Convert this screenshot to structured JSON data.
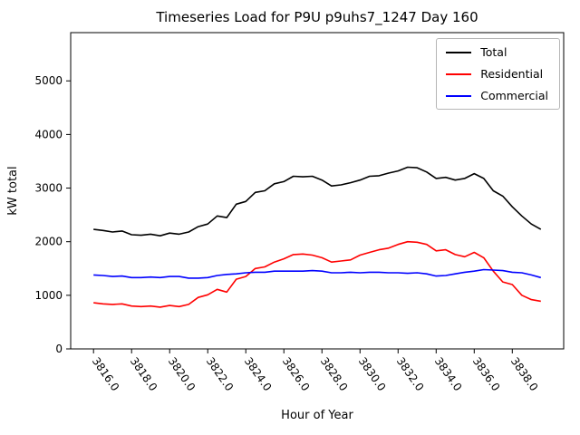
{
  "figure": {
    "title": "Timeseries Load for P9U p9uhs7_1247  Day 160",
    "xlabel": "Hour of Year",
    "ylabel": "kW total"
  },
  "legend": {
    "entries": [
      {
        "label": "Total",
        "color": "#000000"
      },
      {
        "label": "Residential",
        "color": "#ff0000"
      },
      {
        "label": "Commercial",
        "color": "#0000ff"
      }
    ]
  },
  "chart_data": {
    "type": "line",
    "title": "Timeseries Load for P9U p9uhs7_1247  Day 160",
    "xlabel": "Hour of Year",
    "ylabel": "kW total",
    "xlim": [
      3814.8,
      3840.7
    ],
    "ylim": [
      0,
      5900
    ],
    "xticks": [
      3816,
      3818,
      3820,
      3822,
      3824,
      3826,
      3828,
      3830,
      3832,
      3834,
      3836,
      3838
    ],
    "xtick_labels": [
      "3816.0",
      "3818.0",
      "3820.0",
      "3822.0",
      "3824.0",
      "3826.0",
      "3828.0",
      "3830.0",
      "3832.0",
      "3834.0",
      "3836.0",
      "3838.0"
    ],
    "yticks": [
      0,
      1000,
      2000,
      3000,
      4000,
      5000
    ],
    "ytick_labels": [
      "0",
      "1000",
      "2000",
      "3000",
      "4000",
      "5000"
    ],
    "grid": false,
    "legend_position": "upper right",
    "x": [
      3816.0,
      3816.5,
      3817.0,
      3817.5,
      3818.0,
      3818.5,
      3819.0,
      3819.5,
      3820.0,
      3820.5,
      3821.0,
      3821.5,
      3822.0,
      3822.5,
      3823.0,
      3823.5,
      3824.0,
      3824.5,
      3825.0,
      3825.5,
      3826.0,
      3826.5,
      3827.0,
      3827.5,
      3828.0,
      3828.5,
      3829.0,
      3829.5,
      3830.0,
      3830.5,
      3831.0,
      3831.5,
      3832.0,
      3832.5,
      3833.0,
      3833.5,
      3834.0,
      3834.5,
      3835.0,
      3835.5,
      3836.0,
      3836.5,
      3837.0,
      3837.5,
      3838.0,
      3838.5,
      3839.0,
      3839.5
    ],
    "series": [
      {
        "name": "Total",
        "color": "#000000",
        "values": [
          2230,
          2210,
          2180,
          2200,
          2130,
          2120,
          2140,
          2110,
          2160,
          2140,
          2180,
          2280,
          2330,
          2480,
          2450,
          2700,
          2750,
          2920,
          2950,
          3080,
          3120,
          3220,
          3210,
          3220,
          3150,
          3040,
          3060,
          3100,
          3150,
          3220,
          3230,
          3280,
          3320,
          3390,
          3380,
          3300,
          3180,
          3200,
          3150,
          3180,
          3270,
          3180,
          2950,
          2850,
          2650,
          2480,
          2330,
          2230
        ]
      },
      {
        "name": "Residential",
        "color": "#ff0000",
        "values": [
          860,
          840,
          830,
          840,
          800,
          790,
          800,
          780,
          810,
          790,
          830,
          960,
          1010,
          1110,
          1060,
          1300,
          1350,
          1500,
          1530,
          1620,
          1680,
          1760,
          1770,
          1750,
          1700,
          1620,
          1640,
          1660,
          1750,
          1800,
          1850,
          1880,
          1950,
          2000,
          1990,
          1950,
          1830,
          1850,
          1760,
          1720,
          1800,
          1700,
          1450,
          1250,
          1200,
          1000,
          920,
          890
        ]
      },
      {
        "name": "Commercial",
        "color": "#0000ff",
        "values": [
          1380,
          1370,
          1350,
          1360,
          1330,
          1330,
          1340,
          1330,
          1350,
          1350,
          1320,
          1320,
          1330,
          1370,
          1390,
          1400,
          1420,
          1430,
          1430,
          1450,
          1450,
          1450,
          1450,
          1460,
          1450,
          1420,
          1420,
          1430,
          1420,
          1430,
          1430,
          1420,
          1420,
          1410,
          1420,
          1400,
          1360,
          1370,
          1400,
          1430,
          1450,
          1480,
          1470,
          1460,
          1430,
          1420,
          1380,
          1330
        ]
      }
    ]
  }
}
